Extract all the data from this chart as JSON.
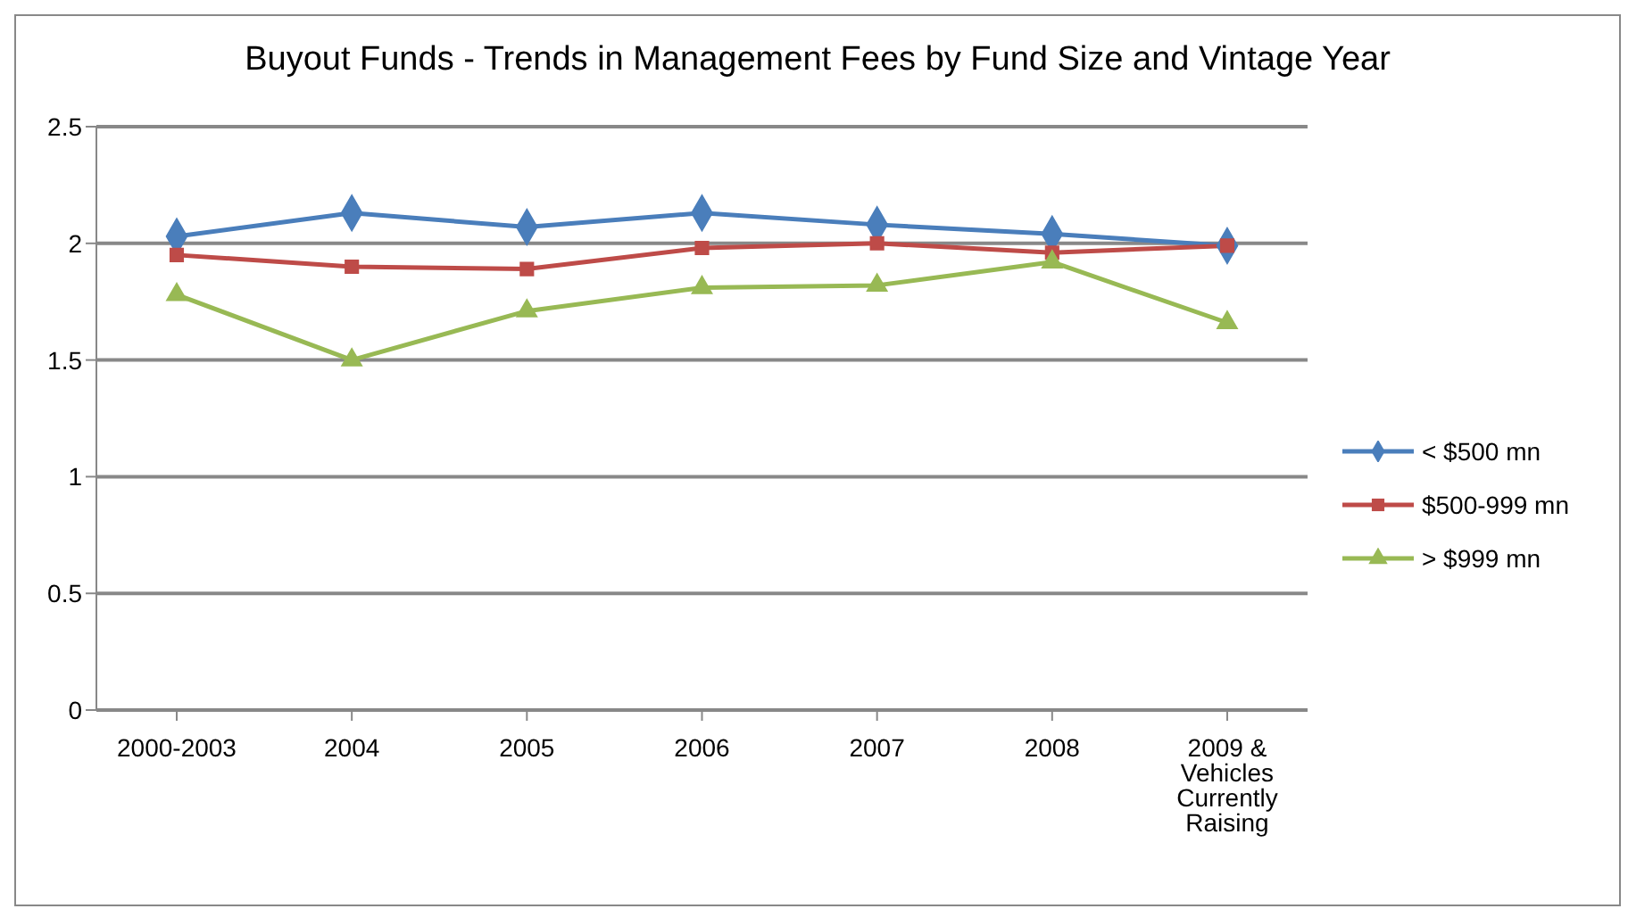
{
  "chart_data": {
    "type": "line",
    "title": "Buyout Funds - Trends in Management Fees by Fund Size and Vintage Year",
    "categories": [
      "2000-2003",
      "2004",
      "2005",
      "2006",
      "2007",
      "2008",
      "2009 & Vehicles Currently Raising"
    ],
    "series": [
      {
        "name": "< $500 mn",
        "color": "#4a7ebb",
        "marker": "diamond",
        "values": [
          2.03,
          2.13,
          2.07,
          2.13,
          2.08,
          2.04,
          1.99
        ]
      },
      {
        "name": "$500-999 mn",
        "color": "#be4b48",
        "marker": "square",
        "values": [
          1.95,
          1.9,
          1.89,
          1.98,
          2.0,
          1.96,
          1.99
        ]
      },
      {
        "name": "> $999 mn",
        "color": "#98b954",
        "marker": "triangle",
        "values": [
          1.78,
          1.5,
          1.71,
          1.81,
          1.82,
          1.92,
          1.66
        ]
      }
    ],
    "ylim": [
      0,
      2.5
    ],
    "yticks": [
      0,
      0.5,
      1,
      1.5,
      2,
      2.5
    ],
    "grid": "y",
    "legend": "right",
    "line_style": "solid"
  }
}
